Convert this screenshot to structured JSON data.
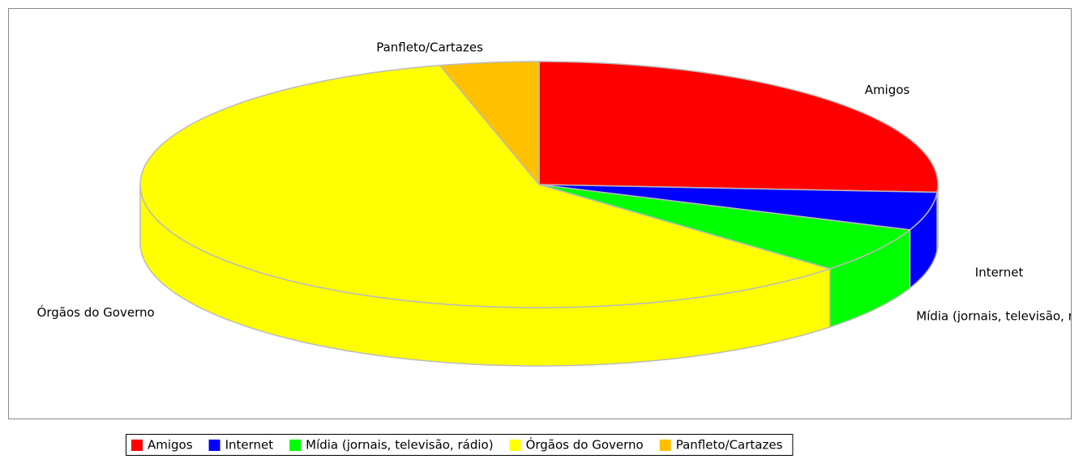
{
  "chart_data": {
    "type": "pie",
    "three_d": true,
    "categories": [
      "Amigos",
      "Internet",
      "Mídia (jornais, televisão, rádio)",
      "Órgãos do Governo",
      "Panfleto/Cartazes"
    ],
    "values": [
      26,
      5,
      6,
      59,
      4
    ],
    "colors": [
      "#ff0000",
      "#0000ff",
      "#00ff00",
      "#ffff00",
      "#ffc000"
    ],
    "legend": "bottom"
  }
}
